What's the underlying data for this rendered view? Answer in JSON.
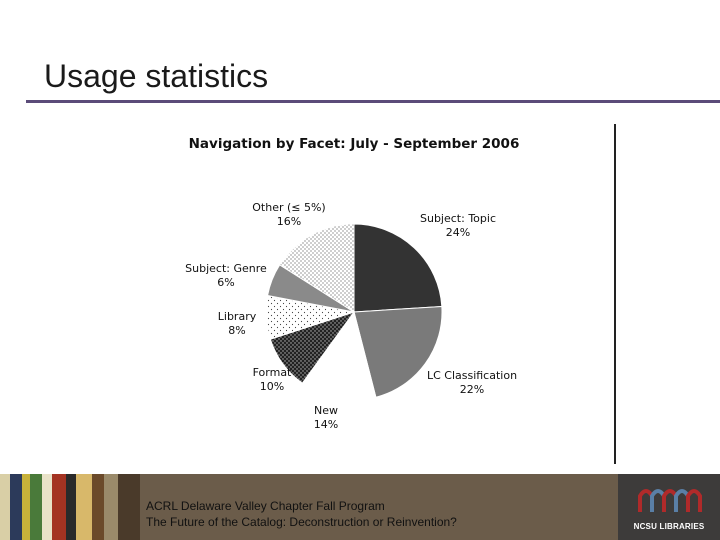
{
  "slide": {
    "title": "Usage statistics"
  },
  "chart_data": {
    "type": "pie",
    "title": "Navigation by Facet: July - September 2006",
    "slices": [
      {
        "label": "Subject: Topic",
        "value": 24,
        "value_label": "24%",
        "color": "#333333"
      },
      {
        "label": "LC Classification",
        "value": 22,
        "value_label": "22%",
        "color": "#7a7a7a"
      },
      {
        "label": "New",
        "value": 14,
        "value_label": "14%",
        "color": "#ffffff"
      },
      {
        "label": "Format",
        "value": 10,
        "value_label": "10%",
        "color": "#2a2a2a"
      },
      {
        "label": "Library",
        "value": 8,
        "value_label": "8%",
        "color": "#f6f6f6"
      },
      {
        "label": "Subject: Genre",
        "value": 6,
        "value_label": "6%",
        "color": "#8a8a8a"
      },
      {
        "label": "Other (≤ 5%)",
        "value": 16,
        "value_label": "16%",
        "color": "#d0d0d0"
      }
    ]
  },
  "footer": {
    "line1": "ACRL Delaware Valley Chapter Fall Program",
    "line2": "The Future of the Catalog: Deconstruction or Reinvention?",
    "logo_text": "NCSU LIBRARIES",
    "logo_colors": [
      "#b02a2a",
      "#5a7fa6"
    ]
  }
}
